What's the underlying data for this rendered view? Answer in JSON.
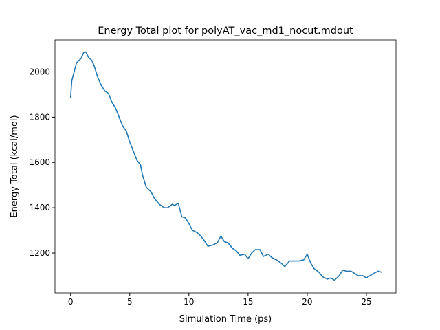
{
  "chart_data": {
    "type": "line",
    "title": "Energy Total plot for polyAT_vac_md1_nocut.mdout",
    "x_label": "Simulation Time (ps)",
    "y_label": "Energy Total (kcal/mol)",
    "x": [
      0,
      0.1,
      0.3,
      0.5,
      0.7,
      0.9,
      1.1,
      1.3,
      1.5,
      1.8,
      2.0,
      2.3,
      2.6,
      2.9,
      3.2,
      3.5,
      3.8,
      4.1,
      4.4,
      4.7,
      5.0,
      5.3,
      5.6,
      5.9,
      6.1,
      6.4,
      6.8,
      7.1,
      7.5,
      7.9,
      8.2,
      8.6,
      8.8,
      9.1,
      9.4,
      9.7,
      10.0,
      10.3,
      10.7,
      11.0,
      11.3,
      11.6,
      12.0,
      12.4,
      12.7,
      13.0,
      13.3,
      13.7,
      14.0,
      14.3,
      14.7,
      15.0,
      15.3,
      15.6,
      16.0,
      16.3,
      16.7,
      17.0,
      17.4,
      17.8,
      18.1,
      18.5,
      18.9,
      19.3,
      19.7,
      20.0,
      20.3,
      20.6,
      21.0,
      21.3,
      21.7,
      22.0,
      22.3,
      22.7,
      23.0,
      23.3,
      23.7,
      24.0,
      24.3,
      24.7,
      25.0,
      25.3,
      25.6,
      26.0,
      26.3
    ],
    "series": [
      {
        "color": "#1f77b4",
        "values": [
          1885,
          1960,
          2000,
          2040,
          2050,
          2060,
          2085,
          2088,
          2065,
          2050,
          2025,
          1975,
          1940,
          1915,
          1905,
          1865,
          1840,
          1800,
          1760,
          1740,
          1690,
          1650,
          1610,
          1590,
          1540,
          1490,
          1470,
          1440,
          1415,
          1400,
          1400,
          1415,
          1410,
          1420,
          1360,
          1355,
          1330,
          1300,
          1290,
          1275,
          1255,
          1230,
          1235,
          1245,
          1275,
          1250,
          1245,
          1220,
          1210,
          1190,
          1195,
          1175,
          1200,
          1215,
          1215,
          1185,
          1195,
          1180,
          1170,
          1155,
          1140,
          1165,
          1165,
          1165,
          1170,
          1195,
          1155,
          1130,
          1115,
          1095,
          1085,
          1090,
          1080,
          1100,
          1125,
          1120,
          1120,
          1110,
          1100,
          1100,
          1090,
          1100,
          1110,
          1120,
          1115
        ]
      }
    ],
    "xlim": [
      -1.32,
      27.5
    ],
    "ylim": [
      1024,
      2141
    ],
    "xticks": [
      0,
      5,
      10,
      15,
      20,
      25
    ],
    "yticks": [
      1200,
      1400,
      1600,
      1800,
      2000
    ]
  }
}
